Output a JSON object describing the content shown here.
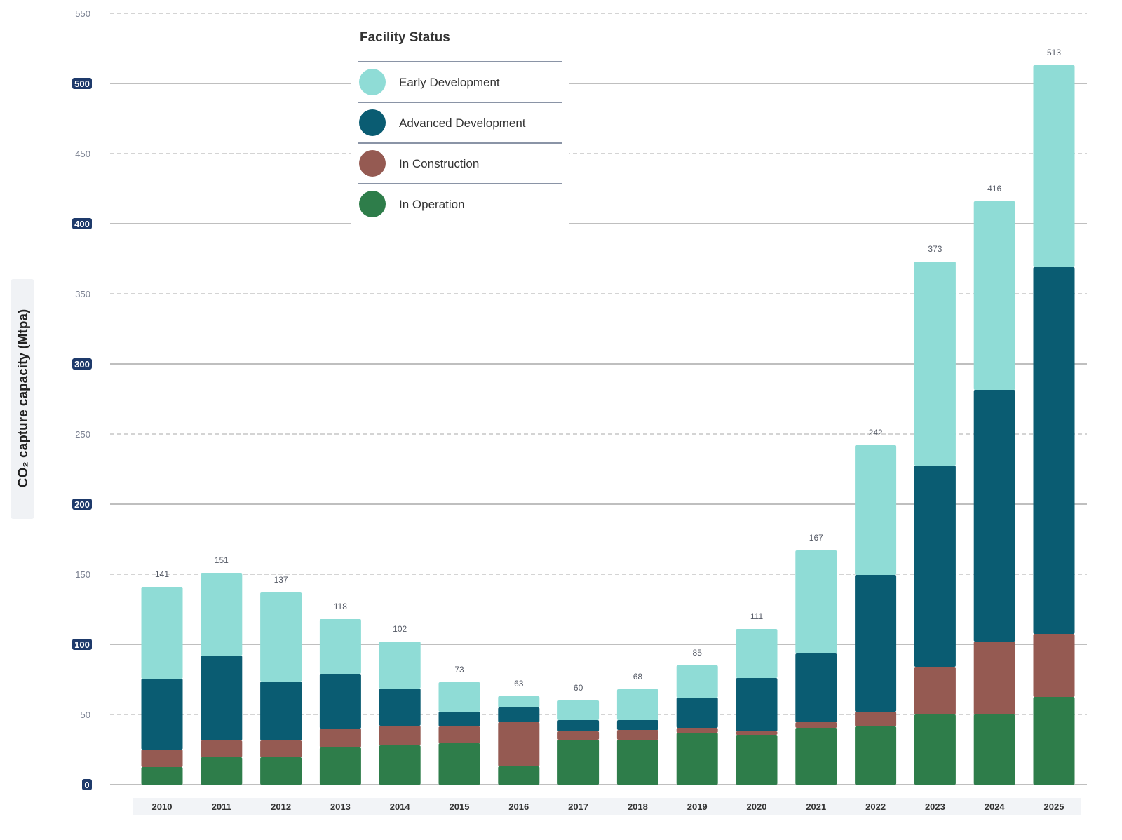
{
  "chart_data": {
    "type": "bar",
    "stacked": true,
    "title": "",
    "xlabel": "",
    "ylabel": "CO₂ capture capacity (Mtpa)",
    "ylim": [
      0,
      550
    ],
    "yticks": [
      0,
      50,
      100,
      150,
      200,
      250,
      300,
      350,
      400,
      450,
      500,
      550
    ],
    "highlighted_yticks": [
      0,
      100,
      200,
      300,
      400,
      500
    ],
    "grid": true,
    "legend_title": "Facility Status",
    "legend_placement": "top-center",
    "categories": [
      "2010",
      "2011",
      "2012",
      "2013",
      "2014",
      "2015",
      "2016",
      "2017",
      "2018",
      "2019",
      "2020",
      "2021",
      "2022",
      "2023",
      "2024",
      "2025"
    ],
    "series": [
      {
        "name": "In Operation",
        "color": "#2e7d4a",
        "values": [
          12.5,
          19.5,
          19.5,
          26.5,
          28,
          29.5,
          13,
          32,
          32,
          37,
          35.5,
          40.5,
          41.5,
          50,
          50,
          62.5
        ]
      },
      {
        "name": "In Construction",
        "color": "#955a52",
        "values": [
          12.5,
          12,
          12,
          13.5,
          14,
          12,
          31.5,
          6,
          7,
          3.5,
          2.5,
          4,
          10.5,
          34,
          52,
          45
        ]
      },
      {
        "name": "Advanced Development",
        "color": "#0a5c72",
        "values": [
          50.5,
          60.5,
          42,
          39,
          26.5,
          10.5,
          10.5,
          8,
          7,
          21.5,
          38,
          49,
          97.5,
          143.5,
          179.5,
          261.5
        ]
      },
      {
        "name": "Early Development",
        "color": "#8fdcd6",
        "values": [
          65.5,
          58.5,
          63.5,
          40,
          33.5,
          21,
          8,
          14,
          22,
          23,
          35,
          73.5,
          92.5,
          145.5,
          134.5,
          144
        ]
      }
    ],
    "totals": [
      141,
      151,
      137,
      118,
      102,
      73,
      63,
      60,
      68,
      85,
      111,
      167,
      242,
      373,
      416,
      513
    ],
    "legend_order": [
      "Early Development",
      "Advanced Development",
      "In Construction",
      "In Operation"
    ]
  },
  "colors": {
    "tick_badge": "#1e3a6b",
    "grid": "#999999"
  }
}
